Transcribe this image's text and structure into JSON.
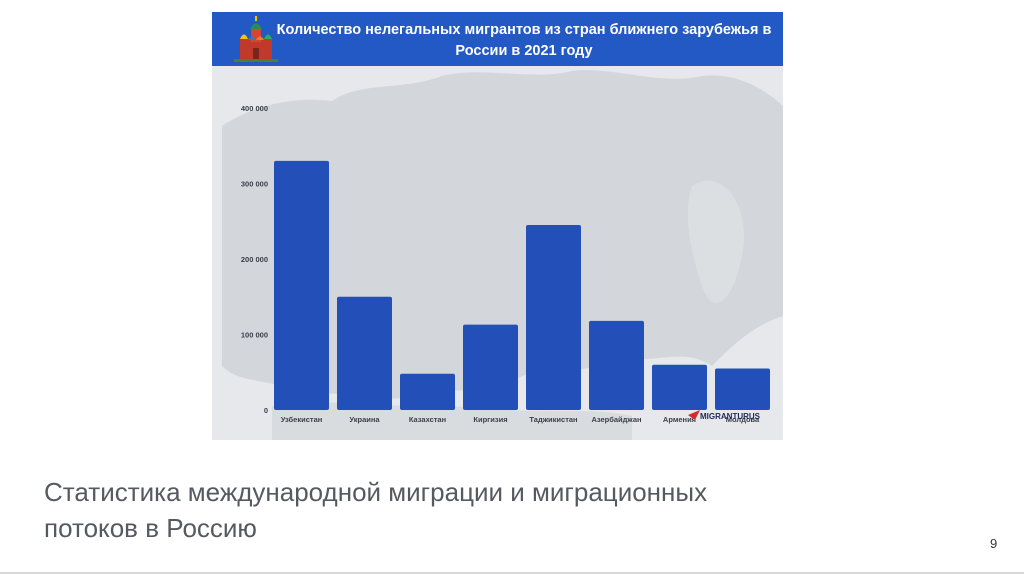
{
  "slide": {
    "caption": "Статистика международной миграции и миграционных потоков в Россию",
    "page_number": "9"
  },
  "chart_data": {
    "type": "bar",
    "title": "Количество нелегальных мигрантов из стран ближнего зарубежья в России в 2021 году",
    "categories": [
      "Узбекистан",
      "Украина",
      "Казахстан",
      "Киргизия",
      "Таджикистан",
      "Азербайджан",
      "Армения",
      "Молдова"
    ],
    "values": [
      330000,
      150000,
      48000,
      113000,
      245000,
      118000,
      60000,
      55000
    ],
    "ylim": [
      0,
      400000
    ],
    "yticks": [
      0,
      100000,
      200000,
      300000,
      400000
    ],
    "ytick_labels": [
      "0",
      "100 000",
      "200 000",
      "300 000",
      "400 000"
    ],
    "grid": false,
    "bar_color": "#2350b8",
    "header_color": "#2359c4",
    "background": "map",
    "brand": "MIGRANTURUS"
  }
}
